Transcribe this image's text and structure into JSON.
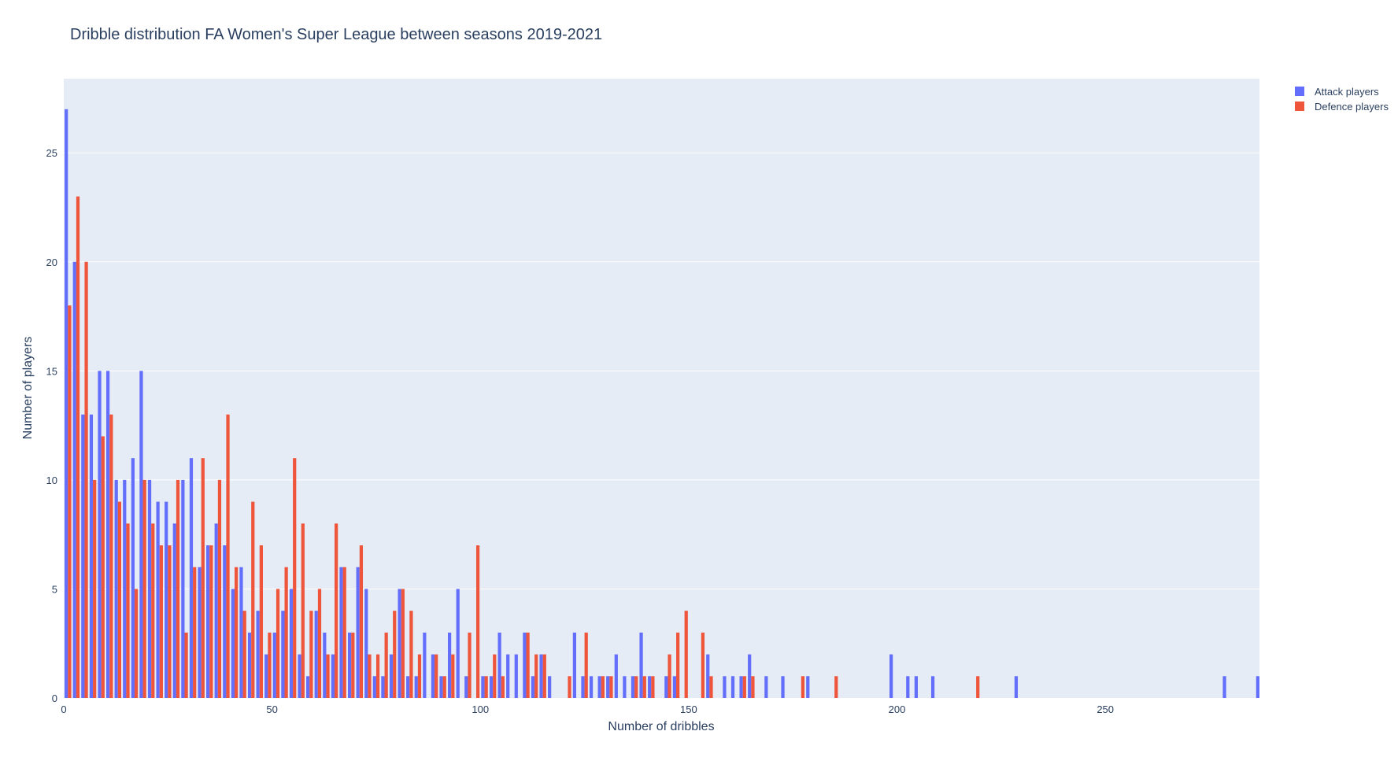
{
  "chart_data": {
    "type": "bar",
    "title": "Dribble distribution FA Women's Super League between seasons 2019-2021",
    "xlabel": "Number of dribbles",
    "ylabel": "Number of players",
    "xlim": [
      0,
      287
    ],
    "ylim": [
      0,
      28.4
    ],
    "bin_width": 2,
    "grid": true,
    "legend_position": "top-right",
    "x_ticks": [
      0,
      50,
      100,
      150,
      200,
      250
    ],
    "y_ticks": [
      0,
      5,
      10,
      15,
      20,
      25
    ],
    "series": [
      {
        "name": "Attack players",
        "color": "#636efa",
        "bins": [
          {
            "x": 0,
            "y": 27
          },
          {
            "x": 2,
            "y": 20
          },
          {
            "x": 4,
            "y": 13
          },
          {
            "x": 6,
            "y": 13
          },
          {
            "x": 8,
            "y": 15
          },
          {
            "x": 10,
            "y": 15
          },
          {
            "x": 12,
            "y": 10
          },
          {
            "x": 14,
            "y": 10
          },
          {
            "x": 16,
            "y": 11
          },
          {
            "x": 18,
            "y": 15
          },
          {
            "x": 20,
            "y": 10
          },
          {
            "x": 22,
            "y": 9
          },
          {
            "x": 24,
            "y": 9
          },
          {
            "x": 26,
            "y": 8
          },
          {
            "x": 28,
            "y": 10
          },
          {
            "x": 30,
            "y": 11
          },
          {
            "x": 32,
            "y": 6
          },
          {
            "x": 34,
            "y": 7
          },
          {
            "x": 36,
            "y": 8
          },
          {
            "x": 38,
            "y": 7
          },
          {
            "x": 40,
            "y": 5
          },
          {
            "x": 42,
            "y": 6
          },
          {
            "x": 44,
            "y": 3
          },
          {
            "x": 46,
            "y": 4
          },
          {
            "x": 48,
            "y": 2
          },
          {
            "x": 50,
            "y": 3
          },
          {
            "x": 52,
            "y": 4
          },
          {
            "x": 54,
            "y": 5
          },
          {
            "x": 56,
            "y": 2
          },
          {
            "x": 58,
            "y": 1
          },
          {
            "x": 60,
            "y": 4
          },
          {
            "x": 62,
            "y": 3
          },
          {
            "x": 64,
            "y": 2
          },
          {
            "x": 66,
            "y": 6
          },
          {
            "x": 68,
            "y": 3
          },
          {
            "x": 70,
            "y": 6
          },
          {
            "x": 72,
            "y": 5
          },
          {
            "x": 74,
            "y": 1
          },
          {
            "x": 76,
            "y": 1
          },
          {
            "x": 78,
            "y": 2
          },
          {
            "x": 80,
            "y": 5
          },
          {
            "x": 82,
            "y": 1
          },
          {
            "x": 84,
            "y": 1
          },
          {
            "x": 86,
            "y": 3
          },
          {
            "x": 88,
            "y": 2
          },
          {
            "x": 90,
            "y": 1
          },
          {
            "x": 92,
            "y": 3
          },
          {
            "x": 94,
            "y": 5
          },
          {
            "x": 96,
            "y": 1
          },
          {
            "x": 100,
            "y": 1
          },
          {
            "x": 102,
            "y": 1
          },
          {
            "x": 104,
            "y": 3
          },
          {
            "x": 106,
            "y": 2
          },
          {
            "x": 108,
            "y": 2
          },
          {
            "x": 110,
            "y": 3
          },
          {
            "x": 112,
            "y": 1
          },
          {
            "x": 114,
            "y": 2
          },
          {
            "x": 116,
            "y": 1
          },
          {
            "x": 122,
            "y": 3
          },
          {
            "x": 124,
            "y": 1
          },
          {
            "x": 126,
            "y": 1
          },
          {
            "x": 128,
            "y": 1
          },
          {
            "x": 130,
            "y": 1
          },
          {
            "x": 132,
            "y": 2
          },
          {
            "x": 134,
            "y": 1
          },
          {
            "x": 136,
            "y": 1
          },
          {
            "x": 138,
            "y": 3
          },
          {
            "x": 140,
            "y": 1
          },
          {
            "x": 144,
            "y": 1
          },
          {
            "x": 146,
            "y": 1
          },
          {
            "x": 154,
            "y": 2
          },
          {
            "x": 158,
            "y": 1
          },
          {
            "x": 160,
            "y": 1
          },
          {
            "x": 162,
            "y": 1
          },
          {
            "x": 164,
            "y": 2
          },
          {
            "x": 168,
            "y": 1
          },
          {
            "x": 172,
            "y": 1
          },
          {
            "x": 178,
            "y": 1
          },
          {
            "x": 198,
            "y": 2
          },
          {
            "x": 202,
            "y": 1
          },
          {
            "x": 204,
            "y": 1
          },
          {
            "x": 208,
            "y": 1
          },
          {
            "x": 228,
            "y": 1
          },
          {
            "x": 278,
            "y": 1
          },
          {
            "x": 286,
            "y": 1
          }
        ]
      },
      {
        "name": "Defence players",
        "color": "#ef553b",
        "bins": [
          {
            "x": 0,
            "y": 18
          },
          {
            "x": 2,
            "y": 23
          },
          {
            "x": 4,
            "y": 20
          },
          {
            "x": 6,
            "y": 10
          },
          {
            "x": 8,
            "y": 12
          },
          {
            "x": 10,
            "y": 13
          },
          {
            "x": 12,
            "y": 9
          },
          {
            "x": 14,
            "y": 8
          },
          {
            "x": 16,
            "y": 5
          },
          {
            "x": 18,
            "y": 10
          },
          {
            "x": 20,
            "y": 8
          },
          {
            "x": 22,
            "y": 7
          },
          {
            "x": 24,
            "y": 7
          },
          {
            "x": 26,
            "y": 10
          },
          {
            "x": 28,
            "y": 3
          },
          {
            "x": 30,
            "y": 6
          },
          {
            "x": 32,
            "y": 11
          },
          {
            "x": 34,
            "y": 7
          },
          {
            "x": 36,
            "y": 10
          },
          {
            "x": 38,
            "y": 13
          },
          {
            "x": 40,
            "y": 6
          },
          {
            "x": 42,
            "y": 4
          },
          {
            "x": 44,
            "y": 9
          },
          {
            "x": 46,
            "y": 7
          },
          {
            "x": 48,
            "y": 3
          },
          {
            "x": 50,
            "y": 5
          },
          {
            "x": 52,
            "y": 6
          },
          {
            "x": 54,
            "y": 11
          },
          {
            "x": 56,
            "y": 8
          },
          {
            "x": 58,
            "y": 4
          },
          {
            "x": 60,
            "y": 5
          },
          {
            "x": 62,
            "y": 2
          },
          {
            "x": 64,
            "y": 8
          },
          {
            "x": 66,
            "y": 6
          },
          {
            "x": 68,
            "y": 3
          },
          {
            "x": 70,
            "y": 7
          },
          {
            "x": 72,
            "y": 2
          },
          {
            "x": 74,
            "y": 2
          },
          {
            "x": 76,
            "y": 3
          },
          {
            "x": 78,
            "y": 4
          },
          {
            "x": 80,
            "y": 5
          },
          {
            "x": 82,
            "y": 4
          },
          {
            "x": 84,
            "y": 2
          },
          {
            "x": 88,
            "y": 2
          },
          {
            "x": 90,
            "y": 1
          },
          {
            "x": 92,
            "y": 2
          },
          {
            "x": 96,
            "y": 3
          },
          {
            "x": 98,
            "y": 7
          },
          {
            "x": 100,
            "y": 1
          },
          {
            "x": 102,
            "y": 2
          },
          {
            "x": 104,
            "y": 1
          },
          {
            "x": 110,
            "y": 3
          },
          {
            "x": 112,
            "y": 2
          },
          {
            "x": 114,
            "y": 2
          },
          {
            "x": 120,
            "y": 1
          },
          {
            "x": 124,
            "y": 3
          },
          {
            "x": 128,
            "y": 1
          },
          {
            "x": 130,
            "y": 1
          },
          {
            "x": 136,
            "y": 1
          },
          {
            "x": 138,
            "y": 1
          },
          {
            "x": 140,
            "y": 1
          },
          {
            "x": 144,
            "y": 2
          },
          {
            "x": 146,
            "y": 3
          },
          {
            "x": 148,
            "y": 4
          },
          {
            "x": 152,
            "y": 3
          },
          {
            "x": 154,
            "y": 1
          },
          {
            "x": 162,
            "y": 1
          },
          {
            "x": 164,
            "y": 1
          },
          {
            "x": 176,
            "y": 1
          },
          {
            "x": 184,
            "y": 1
          },
          {
            "x": 218,
            "y": 1
          }
        ]
      }
    ]
  }
}
